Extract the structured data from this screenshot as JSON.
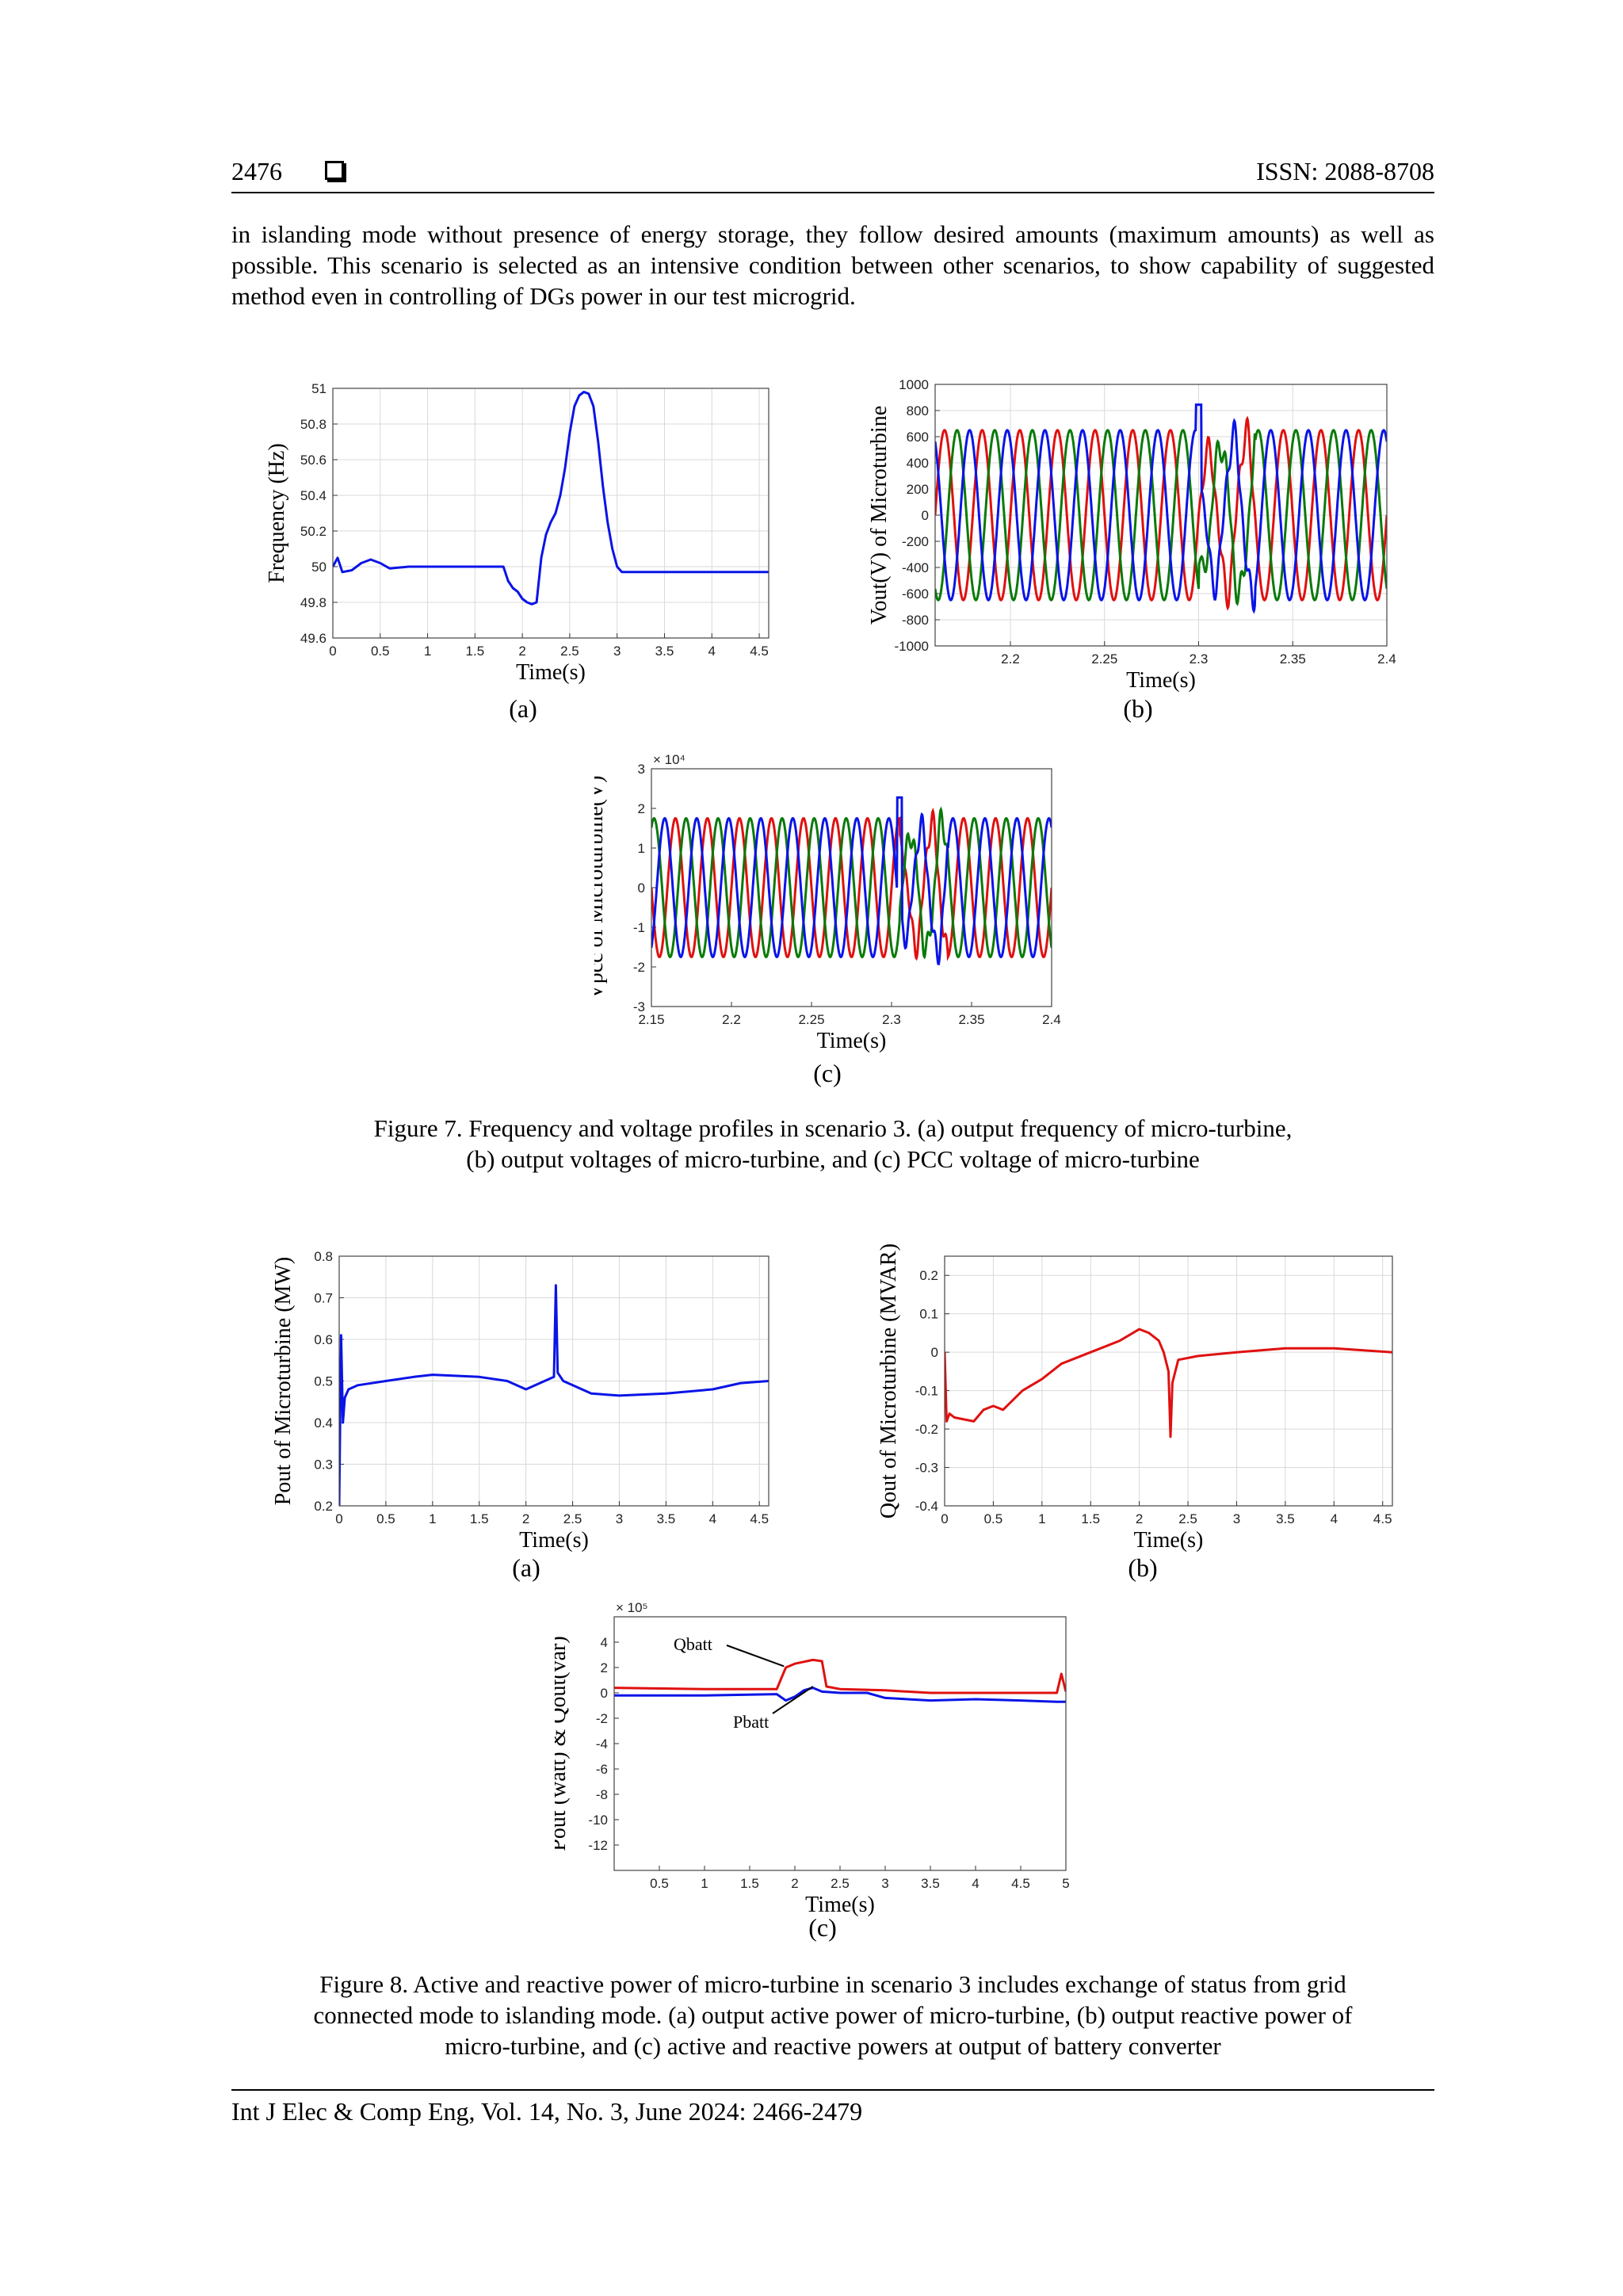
{
  "header": {
    "page_number": "2476",
    "issn": "ISSN: 2088-8708"
  },
  "intro_paragraph": "in islanding mode without presence of energy storage, they follow desired amounts (maximum amounts) as well as possible. This scenario is selected as an intensive condition between other scenarios, to show capability of suggested method even in controlling of DGs power in our test microgrid.",
  "fig7": {
    "caption_line1": "Figure 7. Frequency and voltage profiles in scenario 3. (a) output frequency of micro-turbine,",
    "caption_line2": "(b) output voltages of micro-turbine, and (c) PCC voltage of micro-turbine",
    "sub_a": "(a)",
    "sub_b": "(b)",
    "sub_c": "(c)"
  },
  "fig8": {
    "caption_line1": "Figure 8. Active and reactive power of micro-turbine in scenario 3 includes exchange of status from grid",
    "caption_line2": "connected mode to islanding mode. (a) output active power of micro-turbine, (b) output reactive power of",
    "caption_line3": "micro-turbine, and (c) active and reactive powers at output of battery converter",
    "sub_a": "(a)",
    "sub_b": "(b)",
    "sub_c": "(c)"
  },
  "footer": {
    "citation": "Int J Elec & Comp Eng, Vol. 14, No. 3, June 2024: 2466-2479"
  },
  "colors": {
    "blue": "#0a14e6",
    "red": "#e01010",
    "green": "#0a7a0a"
  },
  "chart_data": [
    {
      "id": "fig7a",
      "type": "line",
      "xlabel": "Time(s)",
      "ylabel": "Frequency (Hz)",
      "xlim": [
        0,
        4.6
      ],
      "ylim": [
        49.6,
        51
      ],
      "xticks": [
        "0",
        "0.5",
        "1",
        "1.5",
        "2",
        "2.5",
        "3",
        "3.5",
        "4",
        "4.5"
      ],
      "yticks": [
        "49.6",
        "49.8",
        "50",
        "50.2",
        "50.4",
        "50.6",
        "50.8",
        "51"
      ],
      "grid": true,
      "series": [
        {
          "color": "blue",
          "x": [
            0,
            0.05,
            0.1,
            0.2,
            0.3,
            0.4,
            0.5,
            0.6,
            0.8,
            1.0,
            1.5,
            1.8,
            1.85,
            1.9,
            1.95,
            2.0,
            2.05,
            2.1,
            2.15,
            2.2,
            2.25,
            2.3,
            2.35,
            2.4,
            2.45,
            2.5,
            2.55,
            2.6,
            2.65,
            2.7,
            2.75,
            2.8,
            2.85,
            2.9,
            2.95,
            3.0,
            3.05,
            3.1,
            3.2,
            3.5,
            4.0,
            4.6
          ],
          "y": [
            50.0,
            50.05,
            49.97,
            49.98,
            50.02,
            50.04,
            50.02,
            49.99,
            50.0,
            50.0,
            50.0,
            50.0,
            49.92,
            49.88,
            49.86,
            49.82,
            49.8,
            49.79,
            49.8,
            50.05,
            50.18,
            50.25,
            50.3,
            50.4,
            50.55,
            50.75,
            50.9,
            50.96,
            50.98,
            50.97,
            50.9,
            50.7,
            50.45,
            50.25,
            50.1,
            50.0,
            49.97,
            49.97,
            49.97,
            49.97,
            49.97,
            49.97
          ]
        }
      ]
    },
    {
      "id": "fig7b",
      "type": "line",
      "xlabel": "Time(s)",
      "ylabel": "Vout(V) of Microturbine",
      "xlim": [
        2.16,
        2.4
      ],
      "ylim": [
        -1000,
        1000
      ],
      "xticks": [
        "2.2",
        "2.25",
        "2.3",
        "2.35",
        "2.4"
      ],
      "yticks": [
        "-1000",
        "-800",
        "-600",
        "-400",
        "-200",
        "0",
        "200",
        "400",
        "600",
        "800",
        "1000"
      ],
      "grid": true,
      "waveform": {
        "frequency_hz": 50,
        "amplitude": 650,
        "phases": [
          "red",
          "green",
          "blue"
        ],
        "disturbance_at": 2.3
      }
    },
    {
      "id": "fig7c",
      "type": "line",
      "xlabel": "Time(s)",
      "ylabel": "Vpcc of  Microturbine(V)",
      "multiplier": "× 10⁴",
      "xlim": [
        2.15,
        2.4
      ],
      "ylim": [
        -3,
        3
      ],
      "xticks": [
        "2.15",
        "2.2",
        "2.25",
        "2.3",
        "2.35",
        "2.4"
      ],
      "yticks": [
        "-3",
        "-2",
        "-1",
        "0",
        "1",
        "2",
        "3"
      ],
      "grid": false,
      "waveform": {
        "frequency_hz": 50,
        "amplitude": 1.75,
        "phases": [
          "red",
          "green",
          "blue"
        ],
        "disturbance_at": 2.305
      }
    },
    {
      "id": "fig8a",
      "type": "line",
      "xlabel": "Time(s)",
      "ylabel": "Pout of Microturbine (MW)",
      "xlim": [
        0,
        4.6
      ],
      "ylim": [
        0.2,
        0.8
      ],
      "xticks": [
        "0",
        "0.5",
        "1",
        "1.5",
        "2",
        "2.5",
        "3",
        "3.5",
        "4",
        "4.5"
      ],
      "yticks": [
        "0.2",
        "0.3",
        "0.4",
        "0.5",
        "0.6",
        "0.7",
        "0.8"
      ],
      "grid": true,
      "series": [
        {
          "color": "blue",
          "x": [
            0,
            0.02,
            0.04,
            0.06,
            0.1,
            0.2,
            0.5,
            0.8,
            1.0,
            1.5,
            1.8,
            2.0,
            2.2,
            2.3,
            2.32,
            2.34,
            2.4,
            2.5,
            2.7,
            3.0,
            3.5,
            4.0,
            4.3,
            4.6
          ],
          "y": [
            0.2,
            0.61,
            0.4,
            0.46,
            0.48,
            0.49,
            0.5,
            0.51,
            0.515,
            0.51,
            0.5,
            0.48,
            0.5,
            0.51,
            0.73,
            0.52,
            0.5,
            0.49,
            0.47,
            0.465,
            0.47,
            0.48,
            0.495,
            0.5
          ]
        }
      ]
    },
    {
      "id": "fig8b",
      "type": "line",
      "xlabel": "Time(s)",
      "ylabel": "Qout of Microturbine (MVAR)",
      "xlim": [
        0,
        4.6
      ],
      "ylim": [
        -0.4,
        0.25
      ],
      "xticks": [
        "0",
        "0.5",
        "1",
        "1.5",
        "2",
        "2.5",
        "3",
        "3.5",
        "4",
        "4.5"
      ],
      "yticks": [
        "-0.4",
        "-0.3",
        "-0.2",
        "-0.1",
        "0",
        "0.1",
        "0.2"
      ],
      "grid": true,
      "series": [
        {
          "color": "red",
          "x": [
            0,
            0.02,
            0.05,
            0.1,
            0.3,
            0.4,
            0.5,
            0.6,
            0.8,
            1.0,
            1.2,
            1.5,
            1.8,
            2.0,
            2.1,
            2.2,
            2.25,
            2.3,
            2.32,
            2.34,
            2.4,
            2.6,
            3.0,
            3.5,
            4.0,
            4.6
          ],
          "y": [
            0.0,
            -0.18,
            -0.16,
            -0.17,
            -0.18,
            -0.15,
            -0.14,
            -0.15,
            -0.1,
            -0.07,
            -0.03,
            0.0,
            0.03,
            0.06,
            0.05,
            0.03,
            0.0,
            -0.05,
            -0.22,
            -0.08,
            -0.02,
            -0.01,
            0.0,
            0.01,
            0.01,
            0.0
          ]
        }
      ]
    },
    {
      "id": "fig8c",
      "type": "line",
      "xlabel": "Time(s)",
      "ylabel": "Pout (watt) & Qout(var)",
      "multiplier": "× 10⁵",
      "xlim": [
        0,
        5
      ],
      "ylim": [
        -14,
        6
      ],
      "xticks": [
        "0.5",
        "1",
        "1.5",
        "2",
        "2.5",
        "3",
        "3.5",
        "4",
        "4.5",
        "5"
      ],
      "yticks": [
        "-12",
        "-10",
        "-8",
        "-6",
        "-4",
        "-2",
        "0",
        "2",
        "4"
      ],
      "grid": false,
      "annotations": [
        "Qbatt",
        "Pbatt"
      ],
      "series": [
        {
          "name": "Qbatt",
          "color": "red",
          "x": [
            0,
            1.0,
            1.8,
            1.9,
            2.0,
            2.2,
            2.3,
            2.35,
            2.5,
            3.0,
            3.5,
            4.0,
            4.9,
            4.95,
            5.0
          ],
          "y": [
            0.4,
            0.3,
            0.3,
            2.0,
            2.3,
            2.6,
            2.5,
            0.5,
            0.3,
            0.2,
            0.0,
            0.0,
            0.0,
            1.5,
            0.1
          ]
        },
        {
          "name": "Pbatt",
          "color": "blue",
          "x": [
            0,
            1.0,
            1.8,
            1.9,
            2.0,
            2.1,
            2.2,
            2.3,
            2.5,
            2.8,
            3.0,
            3.5,
            4.0,
            4.5,
            4.9,
            5.0
          ],
          "y": [
            -0.2,
            -0.2,
            -0.1,
            -0.6,
            -0.3,
            0.2,
            0.4,
            0.1,
            0.0,
            0.0,
            -0.4,
            -0.6,
            -0.5,
            -0.6,
            -0.7,
            -0.7
          ]
        }
      ]
    }
  ]
}
